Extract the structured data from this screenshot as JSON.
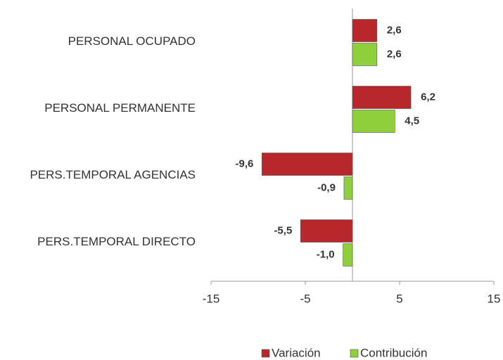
{
  "chart_data": {
    "type": "barh",
    "categories": [
      "PERSONAL OCUPADO",
      "PERSONAL PERMANENTE",
      "PERS.TEMPORAL AGENCIAS",
      "PERS.TEMPORAL DIRECTO"
    ],
    "series": [
      {
        "name": "Variación",
        "color": "#b8282a",
        "values": [
          2.6,
          6.2,
          -9.6,
          -5.5
        ],
        "value_labels": [
          "2,6",
          "6,2",
          "-9,6",
          "-5,5"
        ]
      },
      {
        "name": "Contribución",
        "color": "#8fcf3c",
        "values": [
          2.6,
          4.5,
          -0.9,
          -1.0
        ],
        "value_labels": [
          "2,6",
          "4,5",
          "-0,9",
          "-1,0"
        ]
      }
    ],
    "xlim": [
      -15,
      15
    ],
    "xticks": [
      -15,
      -5,
      5,
      15
    ],
    "legend": "bottom"
  }
}
